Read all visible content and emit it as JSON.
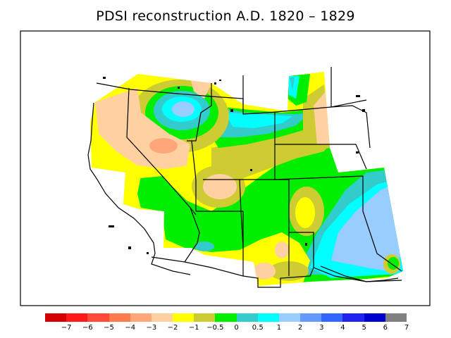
{
  "title": "PDSI reconstruction A.D. 1820 – 1829",
  "legend": {
    "colors": [
      "#d30000",
      "#ff1a1a",
      "#ff4a3a",
      "#ff7a4a",
      "#ffa77a",
      "#ffd0a0",
      "#ffff00",
      "#cdcd33",
      "#00ee00",
      "#33cccc",
      "#00ffff",
      "#99ccff",
      "#6699ff",
      "#3366ff",
      "#2222ee",
      "#0000cc",
      "#808080"
    ],
    "labels": [
      "−7",
      "−6",
      "−5",
      "−4",
      "−3",
      "−2",
      "−1",
      "−0.5",
      "0",
      "0.5",
      "1",
      "2",
      "3",
      "4",
      "5",
      "6",
      "7"
    ]
  }
}
